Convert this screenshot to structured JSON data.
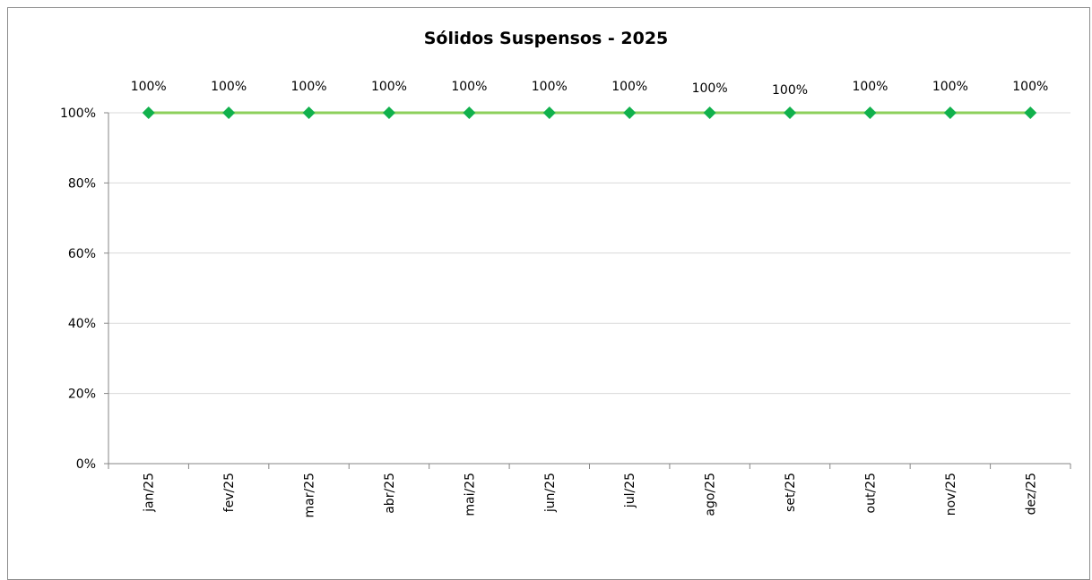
{
  "chart_data": {
    "type": "line",
    "title": "Sólidos Suspensos - 2025",
    "categories": [
      "jan/25",
      "fev/25",
      "mar/25",
      "abr/25",
      "mai/25",
      "jun/25",
      "jul/25",
      "ago/25",
      "set/25",
      "out/25",
      "nov/25",
      "dez/25"
    ],
    "series": [
      {
        "values": [
          100,
          100,
          100,
          100,
          100,
          100,
          100,
          100,
          100,
          100,
          100,
          100
        ]
      }
    ],
    "data_labels": [
      "100%",
      "100%",
      "100%",
      "100%",
      "100%",
      "100%",
      "100%",
      "100%",
      "100%",
      "100%",
      "100%",
      "100%"
    ],
    "yticks": [
      "0%",
      "20%",
      "40%",
      "60%",
      "80%",
      "100%"
    ],
    "ylim": [
      0,
      100
    ],
    "grid": true,
    "legend": "none",
    "colors": {
      "line": "#8dd05b",
      "marker": "#11b14c",
      "grid": "#d9d9d9",
      "axis": "#868686"
    }
  }
}
